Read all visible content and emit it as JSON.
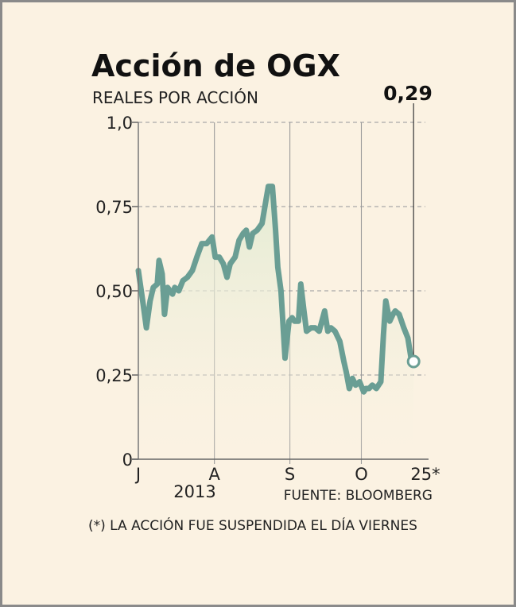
{
  "chart_data": {
    "type": "area",
    "title": "Acción de OGX",
    "subtitle": "REALES POR ACCIÓN",
    "ylim": [
      0,
      1.0
    ],
    "yticks": [
      {
        "value": 0,
        "label": "0"
      },
      {
        "value": 0.25,
        "label": "0,25"
      },
      {
        "value": 0.5,
        "label": "0,50"
      },
      {
        "value": 0.75,
        "label": "0,75"
      },
      {
        "value": 1.0,
        "label": "1,0"
      }
    ],
    "xlim": [
      0,
      100
    ],
    "xticks": [
      {
        "x": 0,
        "label": "J"
      },
      {
        "x": 26.5,
        "label": "A"
      },
      {
        "x": 52.8,
        "label": "S"
      },
      {
        "x": 77.7,
        "label": "O"
      },
      {
        "x": 100,
        "label": "25*"
      }
    ],
    "year_label": "2013",
    "source": "FUENTE: BLOOMBERG",
    "footnote": "(*) LA ACCIÓN FUE SUSPENDIDA EL DÍA VIERNES",
    "last_value_label": "0,29",
    "grid": true,
    "line_color": "#6a9e94",
    "fill_color": "#e6eed9",
    "series": [
      {
        "points": [
          [
            0,
            0.56
          ],
          [
            1.7,
            0.46
          ],
          [
            2.8,
            0.39
          ],
          [
            4.1,
            0.47
          ],
          [
            5.2,
            0.51
          ],
          [
            6.6,
            0.52
          ],
          [
            7.2,
            0.59
          ],
          [
            8.3,
            0.55
          ],
          [
            9.1,
            0.43
          ],
          [
            10.2,
            0.51
          ],
          [
            11.9,
            0.49
          ],
          [
            12.7,
            0.51
          ],
          [
            14.1,
            0.5
          ],
          [
            15.5,
            0.53
          ],
          [
            17.1,
            0.54
          ],
          [
            18.8,
            0.56
          ],
          [
            20.4,
            0.6
          ],
          [
            22.1,
            0.64
          ],
          [
            23.8,
            0.64
          ],
          [
            25.7,
            0.66
          ],
          [
            26.8,
            0.6
          ],
          [
            28.2,
            0.6
          ],
          [
            29.6,
            0.58
          ],
          [
            30.9,
            0.54
          ],
          [
            32.0,
            0.58
          ],
          [
            33.7,
            0.6
          ],
          [
            35.1,
            0.65
          ],
          [
            36.5,
            0.67
          ],
          [
            37.6,
            0.68
          ],
          [
            38.7,
            0.63
          ],
          [
            39.8,
            0.67
          ],
          [
            41.4,
            0.68
          ],
          [
            43.1,
            0.7
          ],
          [
            44.5,
            0.77
          ],
          [
            45.3,
            0.81
          ],
          [
            46.7,
            0.81
          ],
          [
            47.8,
            0.68
          ],
          [
            48.6,
            0.57
          ],
          [
            49.7,
            0.5
          ],
          [
            51.1,
            0.3
          ],
          [
            52.5,
            0.41
          ],
          [
            53.6,
            0.42
          ],
          [
            54.4,
            0.41
          ],
          [
            55.8,
            0.41
          ],
          [
            56.6,
            0.52
          ],
          [
            57.7,
            0.44
          ],
          [
            58.6,
            0.38
          ],
          [
            60.2,
            0.39
          ],
          [
            61.6,
            0.39
          ],
          [
            63.0,
            0.38
          ],
          [
            64.9,
            0.44
          ],
          [
            66.0,
            0.38
          ],
          [
            67.1,
            0.39
          ],
          [
            68.5,
            0.38
          ],
          [
            70.2,
            0.35
          ],
          [
            71.6,
            0.29
          ],
          [
            72.4,
            0.26
          ],
          [
            73.5,
            0.21
          ],
          [
            74.6,
            0.24
          ],
          [
            75.7,
            0.22
          ],
          [
            77.1,
            0.23
          ],
          [
            78.5,
            0.2
          ],
          [
            79.3,
            0.21
          ],
          [
            80.4,
            0.21
          ],
          [
            81.5,
            0.22
          ],
          [
            82.9,
            0.21
          ],
          [
            84.5,
            0.23
          ],
          [
            85.4,
            0.37
          ],
          [
            86.2,
            0.47
          ],
          [
            87.6,
            0.41
          ],
          [
            88.7,
            0.43
          ],
          [
            89.5,
            0.44
          ],
          [
            90.9,
            0.43
          ],
          [
            92.5,
            0.39
          ],
          [
            93.9,
            0.36
          ],
          [
            95.0,
            0.3
          ],
          [
            95.9,
            0.29
          ]
        ]
      }
    ]
  }
}
